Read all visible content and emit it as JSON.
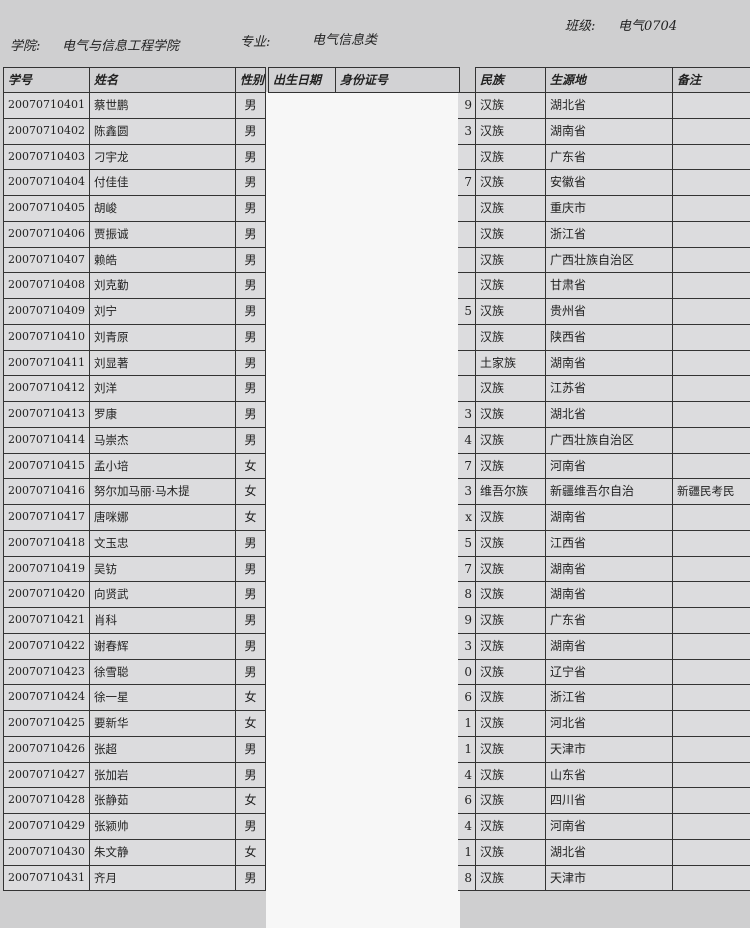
{
  "header": {
    "college_label": "学院:",
    "college": "电气与信息工程学院",
    "major_label": "专业:",
    "major": "电气信息类",
    "class_label": "班级:",
    "class": "电气0704"
  },
  "table": {
    "columns": [
      "学号",
      "姓名",
      "性别",
      "出生日期",
      "身份证号",
      "民族",
      "生源地",
      "备注"
    ],
    "rows": [
      {
        "id": "20070710401",
        "name": "蔡世鹏",
        "gender": "男",
        "id_tail": "9",
        "ethnicity": "汉族",
        "origin": "湖北省"
      },
      {
        "id": "20070710402",
        "name": "陈鑫圆",
        "gender": "男",
        "id_tail": "3",
        "ethnicity": "汉族",
        "origin": "湖南省"
      },
      {
        "id": "20070710403",
        "name": "刁宇龙",
        "gender": "男",
        "ethnicity": "汉族",
        "origin": "广东省"
      },
      {
        "id": "20070710404",
        "name": "付佳佳",
        "gender": "男",
        "id_tail": "7",
        "ethnicity": "汉族",
        "origin": "安徽省"
      },
      {
        "id": "20070710405",
        "name": "胡峻",
        "gender": "男",
        "ethnicity": "汉族",
        "origin": "重庆市"
      },
      {
        "id": "20070710406",
        "name": "贾振诚",
        "gender": "男",
        "ethnicity": "汉族",
        "origin": "浙江省"
      },
      {
        "id": "20070710407",
        "name": "赖皓",
        "gender": "男",
        "ethnicity": "汉族",
        "origin": "广西壮族自治区"
      },
      {
        "id": "20070710408",
        "name": "刘克勤",
        "gender": "男",
        "ethnicity": "汉族",
        "origin": "甘肃省"
      },
      {
        "id": "20070710409",
        "name": "刘宁",
        "gender": "男",
        "id_tail": "5",
        "ethnicity": "汉族",
        "origin": "贵州省"
      },
      {
        "id": "20070710410",
        "name": "刘青原",
        "gender": "男",
        "ethnicity": "汉族",
        "origin": "陕西省"
      },
      {
        "id": "20070710411",
        "name": "刘显著",
        "gender": "男",
        "ethnicity": "土家族",
        "origin": "湖南省"
      },
      {
        "id": "20070710412",
        "name": "刘洋",
        "gender": "男",
        "ethnicity": "汉族",
        "origin": "江苏省"
      },
      {
        "id": "20070710413",
        "name": "罗康",
        "gender": "男",
        "id_tail": "3",
        "ethnicity": "汉族",
        "origin": "湖北省"
      },
      {
        "id": "20070710414",
        "name": "马崇杰",
        "gender": "男",
        "id_tail": "4",
        "ethnicity": "汉族",
        "origin": "广西壮族自治区"
      },
      {
        "id": "20070710415",
        "name": "孟小培",
        "gender": "女",
        "id_tail": "7",
        "ethnicity": "汉族",
        "origin": "河南省"
      },
      {
        "id": "20070710416",
        "name": "努尔加马丽·马木提",
        "gender": "女",
        "id_tail": "3",
        "ethnicity": "维吾尔族",
        "origin": "新疆维吾尔自治",
        "remark": "新疆民考民"
      },
      {
        "id": "20070710417",
        "name": "唐咪娜",
        "gender": "女",
        "id_tail": "x",
        "ethnicity": "汉族",
        "origin": "湖南省"
      },
      {
        "id": "20070710418",
        "name": "文玉忠",
        "gender": "男",
        "id_tail": "5",
        "ethnicity": "汉族",
        "origin": "江西省"
      },
      {
        "id": "20070710419",
        "name": "吴钫",
        "gender": "男",
        "id_tail": "7",
        "ethnicity": "汉族",
        "origin": "湖南省"
      },
      {
        "id": "20070710420",
        "name": "向贤武",
        "gender": "男",
        "id_tail": "8",
        "ethnicity": "汉族",
        "origin": "湖南省"
      },
      {
        "id": "20070710421",
        "name": "肖科",
        "gender": "男",
        "id_tail": "9",
        "ethnicity": "汉族",
        "origin": "广东省"
      },
      {
        "id": "20070710422",
        "name": "谢春辉",
        "gender": "男",
        "id_tail": "3",
        "ethnicity": "汉族",
        "origin": "湖南省"
      },
      {
        "id": "20070710423",
        "name": "徐雪聪",
        "gender": "男",
        "id_tail": "0",
        "ethnicity": "汉族",
        "origin": "辽宁省"
      },
      {
        "id": "20070710424",
        "name": "徐一星",
        "gender": "女",
        "id_tail": "6",
        "ethnicity": "汉族",
        "origin": "浙江省"
      },
      {
        "id": "20070710425",
        "name": "要新华",
        "gender": "女",
        "id_tail": "1",
        "ethnicity": "汉族",
        "origin": "河北省"
      },
      {
        "id": "20070710426",
        "name": "张超",
        "gender": "男",
        "id_tail": "1",
        "ethnicity": "汉族",
        "origin": "天津市"
      },
      {
        "id": "20070710427",
        "name": "张加岩",
        "gender": "男",
        "id_tail": "4",
        "ethnicity": "汉族",
        "origin": "山东省"
      },
      {
        "id": "20070710428",
        "name": "张静茹",
        "gender": "女",
        "id_tail": "6",
        "ethnicity": "汉族",
        "origin": "四川省"
      },
      {
        "id": "20070710429",
        "name": "张颍帅",
        "gender": "男",
        "id_tail": "4",
        "ethnicity": "汉族",
        "origin": "河南省"
      },
      {
        "id": "20070710430",
        "name": "朱文静",
        "gender": "女",
        "id_tail": "1",
        "ethnicity": "汉族",
        "origin": "湖北省"
      },
      {
        "id": "20070710431",
        "name": "齐月",
        "gender": "男",
        "id_tail": "8",
        "ethnicity": "汉族",
        "origin": "天津市"
      }
    ]
  }
}
